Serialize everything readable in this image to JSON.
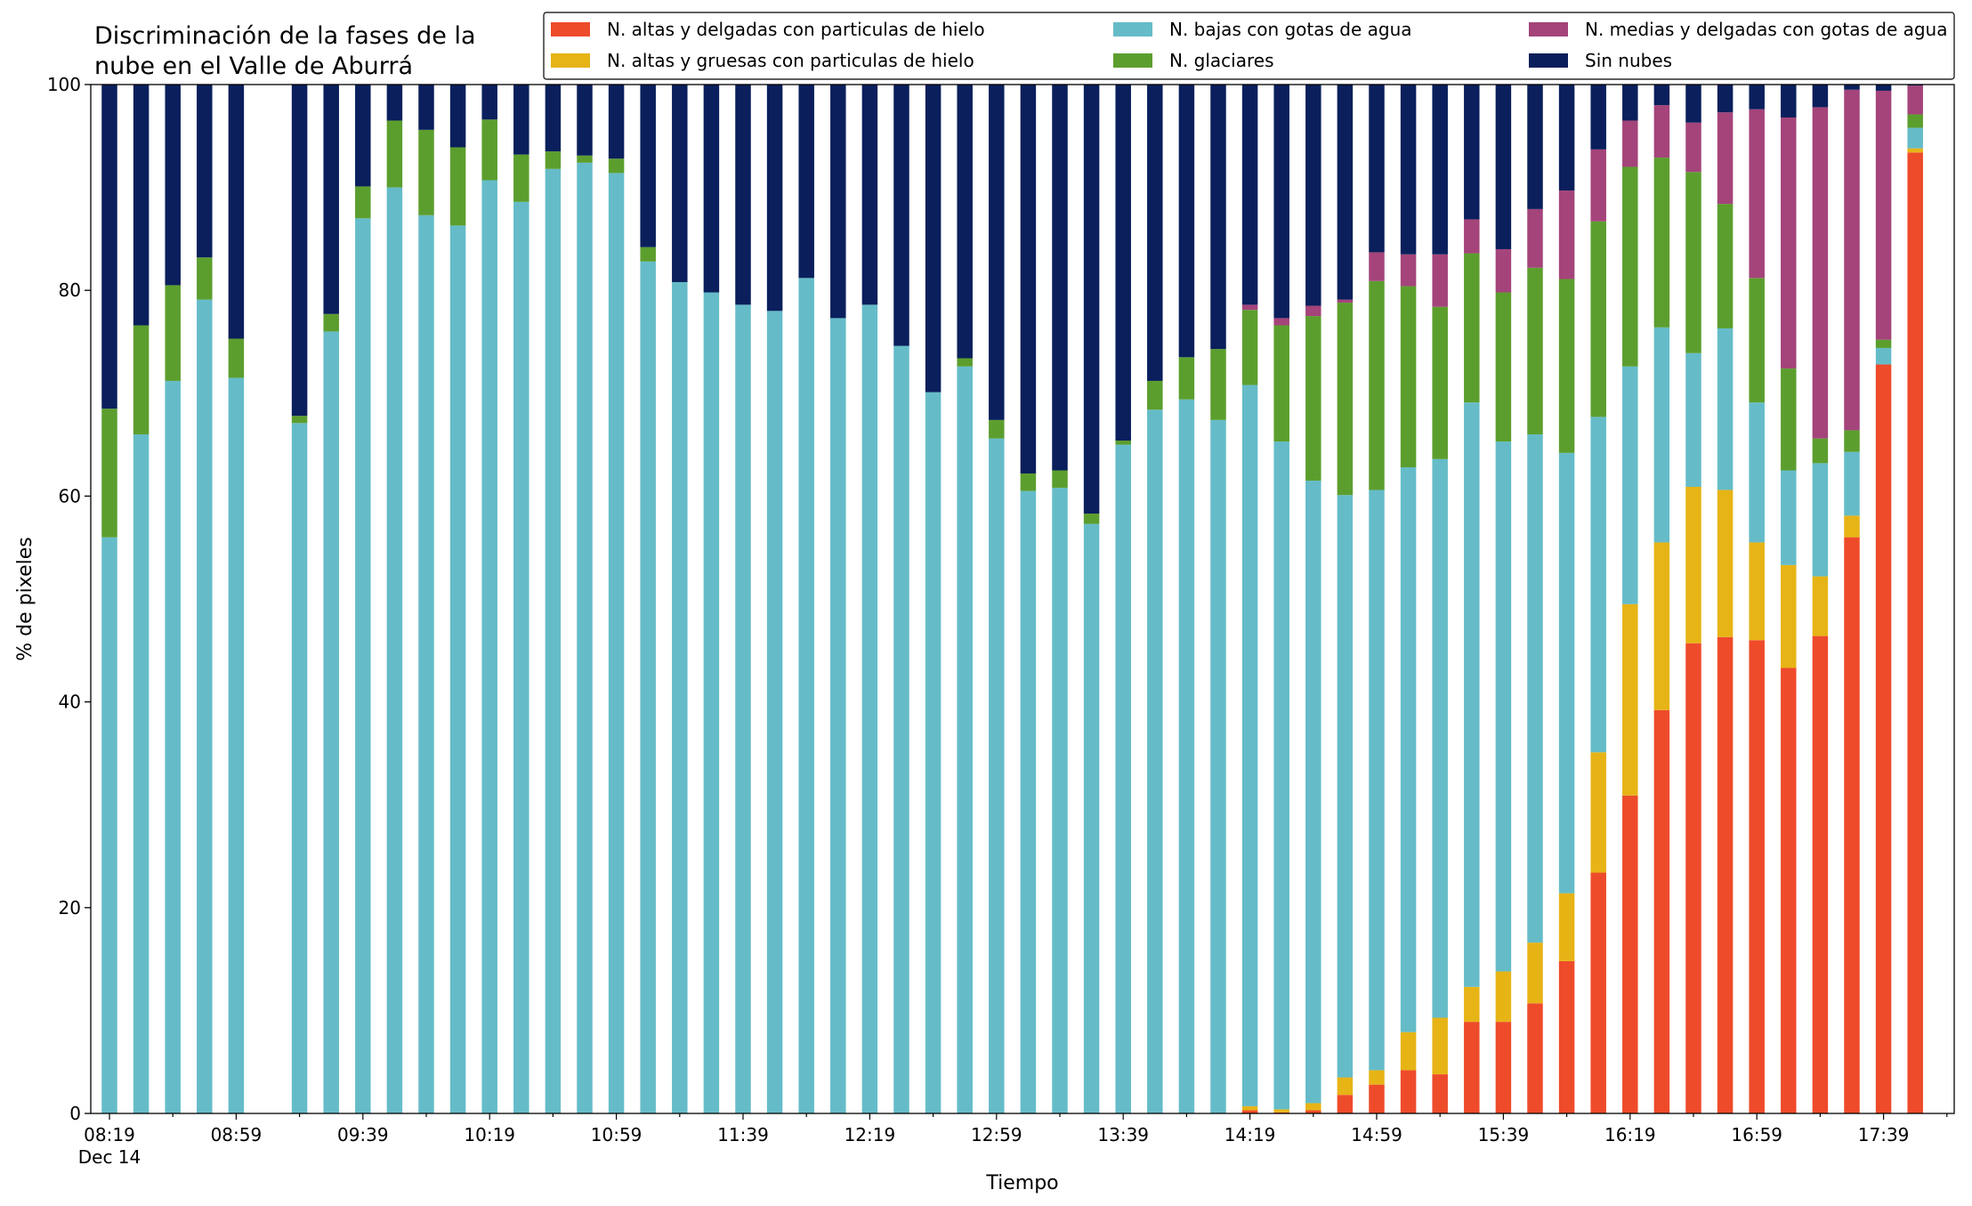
{
  "chart_data": {
    "type": "bar",
    "stacked": true,
    "title": "Discriminación de la fases de la\nnube en el Valle de Aburrá",
    "xlabel": "Tiempo",
    "ylabel": "% de pixeles",
    "ylim": [
      0,
      100
    ],
    "yticks": [
      0,
      20,
      40,
      60,
      80,
      100
    ],
    "legend_position": "top-right",
    "legend_columns": 3,
    "xtick_labels": [
      {
        "index": 0,
        "label": "08:19",
        "sublabel": "Dec 14"
      },
      {
        "index": 4,
        "label": "08:59"
      },
      {
        "index": 8,
        "label": "09:39"
      },
      {
        "index": 12,
        "label": "10:19"
      },
      {
        "index": 16,
        "label": "10:59"
      },
      {
        "index": 20,
        "label": "11:39"
      },
      {
        "index": 24,
        "label": "12:19"
      },
      {
        "index": 28,
        "label": "12:59"
      },
      {
        "index": 32,
        "label": "13:39"
      },
      {
        "index": 36,
        "label": "14:19"
      },
      {
        "index": 40,
        "label": "14:59"
      },
      {
        "index": 44,
        "label": "15:39"
      },
      {
        "index": 48,
        "label": "16:19"
      },
      {
        "index": 52,
        "label": "16:59"
      },
      {
        "index": 56,
        "label": "17:39"
      }
    ],
    "x": [
      "08:19",
      "08:29",
      "08:39",
      "08:49",
      "08:59",
      "09:09",
      "09:19",
      "09:29",
      "09:39",
      "09:49",
      "09:59",
      "10:09",
      "10:19",
      "10:29",
      "10:39",
      "10:49",
      "10:59",
      "11:09",
      "11:19",
      "11:29",
      "11:39",
      "11:49",
      "11:59",
      "12:09",
      "12:19",
      "12:29",
      "12:39",
      "12:49",
      "12:59",
      "13:09",
      "13:19",
      "13:29",
      "13:39",
      "13:49",
      "13:59",
      "14:09",
      "14:19",
      "14:29",
      "14:39",
      "14:49",
      "14:59",
      "15:09",
      "15:19",
      "15:29",
      "15:39",
      "15:49",
      "15:59",
      "16:09",
      "16:19",
      "16:29",
      "16:39",
      "16:49",
      "16:59",
      "17:09",
      "17:19",
      "17:29",
      "17:39",
      "17:49"
    ],
    "series": [
      {
        "name": "N. altas y delgadas con particulas de hielo",
        "color": "#ee4b2b",
        "values": [
          0,
          0,
          0,
          0,
          0,
          null,
          0,
          0,
          0,
          0,
          0,
          0,
          0,
          0,
          0,
          0,
          0,
          0,
          0,
          0,
          0,
          0,
          0,
          0,
          0,
          0,
          0,
          0,
          0,
          0,
          0,
          0,
          0,
          0,
          0,
          0,
          0.3,
          0.1,
          0.3,
          1.8,
          2.8,
          4.2,
          3.8,
          8.9,
          8.9,
          10.7,
          14.8,
          23.4,
          30.9,
          39.2,
          45.7,
          46.3,
          46.0,
          43.3,
          46.4,
          56.0,
          72.8,
          93.4
        ]
      },
      {
        "name": "N. altas y gruesas con particulas de hielo",
        "color": "#e7b416",
        "values": [
          0,
          0,
          0,
          0,
          0,
          null,
          0,
          0,
          0,
          0,
          0,
          0,
          0,
          0,
          0,
          0,
          0,
          0,
          0,
          0,
          0,
          0,
          0,
          0,
          0,
          0,
          0,
          0,
          0,
          0,
          0,
          0,
          0,
          0,
          0,
          0,
          0.4,
          0.3,
          0.7,
          1.7,
          1.4,
          3.7,
          5.5,
          3.4,
          4.9,
          5.9,
          6.6,
          11.7,
          18.6,
          16.3,
          15.2,
          14.3,
          9.5,
          10.0,
          5.8,
          2.1,
          0,
          0.4
        ]
      },
      {
        "name": "N. bajas con gotas de agua",
        "color": "#65bcc8",
        "values": [
          56.0,
          66.0,
          71.2,
          79.1,
          71.5,
          null,
          67.1,
          76.0,
          87.0,
          90.0,
          87.3,
          86.3,
          90.7,
          88.6,
          91.8,
          92.4,
          91.4,
          82.8,
          80.8,
          79.8,
          78.6,
          78.0,
          81.2,
          77.3,
          78.6,
          74.6,
          70.1,
          72.6,
          65.6,
          60.5,
          60.8,
          57.3,
          65.0,
          68.4,
          69.4,
          67.4,
          70.1,
          64.9,
          60.5,
          56.6,
          56.4,
          54.9,
          54.3,
          56.8,
          51.5,
          49.4,
          42.8,
          32.6,
          23.1,
          20.9,
          13.0,
          15.7,
          13.6,
          9.2,
          11.0,
          6.2,
          1.6,
          2.0
        ]
      },
      {
        "name": "N. glaciares",
        "color": "#5c9e2e",
        "values": [
          12.5,
          10.6,
          9.3,
          4.1,
          3.8,
          null,
          0.7,
          1.7,
          3.1,
          6.5,
          8.3,
          7.6,
          5.9,
          4.6,
          1.7,
          0.7,
          1.4,
          1.4,
          0,
          0,
          0,
          0,
          0,
          0,
          0,
          0,
          0,
          0.8,
          1.8,
          1.7,
          1.7,
          1.0,
          0.4,
          2.8,
          4.1,
          6.9,
          7.3,
          11.3,
          16.0,
          18.7,
          20.3,
          17.6,
          14.8,
          14.5,
          14.5,
          16.2,
          16.9,
          19.0,
          19.4,
          16.5,
          17.6,
          12.1,
          12.1,
          9.9,
          2.4,
          2.1,
          0.8,
          1.3
        ]
      },
      {
        "name": "N. medias y delgadas con gotas de agua",
        "color": "#a4447a",
        "values": [
          0,
          0,
          0,
          0,
          0,
          null,
          0,
          0,
          0,
          0,
          0,
          0,
          0,
          0,
          0,
          0,
          0,
          0,
          0,
          0,
          0,
          0,
          0,
          0,
          0,
          0,
          0,
          0,
          0,
          0,
          0,
          0,
          0,
          0,
          0,
          0,
          0.5,
          0.7,
          1.0,
          0.3,
          2.8,
          3.1,
          5.1,
          3.3,
          4.2,
          5.7,
          8.6,
          7.0,
          4.5,
          5.1,
          4.8,
          8.9,
          16.4,
          24.4,
          32.2,
          33.1,
          24.2,
          2.8
        ]
      },
      {
        "name": "Sin nubes",
        "color": "#0a1f5c",
        "values": [
          31.5,
          23.4,
          19.5,
          16.8,
          24.7,
          null,
          32.2,
          22.3,
          9.9,
          3.5,
          4.4,
          6.1,
          3.4,
          6.8,
          6.5,
          6.9,
          7.2,
          15.8,
          19.2,
          20.2,
          21.4,
          22.0,
          18.8,
          22.7,
          21.4,
          25.4,
          29.9,
          26.6,
          32.6,
          37.8,
          37.5,
          41.7,
          34.6,
          28.8,
          26.5,
          25.7,
          21.4,
          22.7,
          21.5,
          20.9,
          16.3,
          16.5,
          16.5,
          13.1,
          16.0,
          12.1,
          10.3,
          6.3,
          3.5,
          2.0,
          3.7,
          2.7,
          2.4,
          3.2,
          2.2,
          0.5,
          0.6,
          0.1
        ]
      }
    ]
  }
}
